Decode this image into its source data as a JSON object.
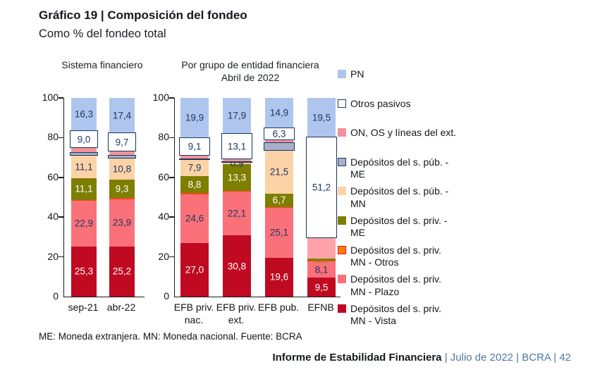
{
  "header": {
    "title": "Gráfico 19 | Composición del fondeo",
    "subtitle": "Como % del fondeo total"
  },
  "footnote": "ME: Moneda extranjera. MN: Moneda nacional. Fuente: BCRA",
  "footer": {
    "report_title": "Informe de Estabilidad Financiera",
    "meta": "| Julio de 2022 | BCRA | 42"
  },
  "colors": {
    "accent_navy": "#1F3864",
    "axis_black": "#1a1a1a",
    "footer_blue": "#4F78A2"
  },
  "chart_data": {
    "type": "bar",
    "stacked": true,
    "title": "Gráfico 19 | Composición del fondeo",
    "subtitle": "Como % del fondeo total",
    "ylabel": "% del fondeo total",
    "ylim": [
      0,
      100
    ],
    "yticks": [
      0,
      20,
      40,
      60,
      80,
      100
    ],
    "grid": false,
    "legend_position": "right",
    "series_defs": [
      {
        "id": "vista",
        "label": "Depósitos del s. priv. MN - Vista",
        "legend_lines": [
          "Depósitos del s. priv.",
          "MN - Vista"
        ],
        "color": "#C00A21",
        "label_color": "#ffffff"
      },
      {
        "id": "plazo",
        "label": "Depósitos del s. priv. MN - Plazo",
        "legend_lines": [
          "Depósitos del s. priv.",
          "MN - Plazo"
        ],
        "color": "#FA7179",
        "label_color": "#1F3864"
      },
      {
        "id": "otros_mn",
        "label": "Depósitos del s. priv. MN - Otros",
        "legend_lines": [
          "Depósitos del s. priv.",
          "MN - Otros"
        ],
        "color": "#FF7F00",
        "bar_color": "#FB451D",
        "swatch_border": "#E8112D",
        "label_color": "#1F3864"
      },
      {
        "id": "me_priv",
        "label": "Depósitos del s. priv. - ME",
        "legend_lines": [
          "Depósitos del s. priv. -",
          "ME"
        ],
        "color": "#7E7F00",
        "label_color": "#ffffff"
      },
      {
        "id": "mn_pub",
        "label": "Depósitos del s. púb. - MN",
        "legend_lines": [
          "Depósitos del s. púb. -",
          "MN"
        ],
        "color": "#FBD3A6",
        "label_color": "#1F3864"
      },
      {
        "id": "me_pub",
        "label": "Depósitos del s. púb. - ME",
        "legend_lines": [
          "Depósitos del s. púb. -",
          "ME"
        ],
        "color": "#A8AFC7",
        "boxed": true,
        "swatch_border": "#1F3864",
        "label_color": "#1F3864"
      },
      {
        "id": "on_os",
        "label": "ON, OS y líneas del ext.",
        "legend_lines": [
          "ON, OS y líneas del ext."
        ],
        "color": "#F4929B",
        "label_color": "#1F3864"
      },
      {
        "id": "otros_pasivos",
        "label": "Otros pasivos",
        "legend_lines": [
          "Otros pasivos"
        ],
        "color": "#FFFFFF",
        "boxed": true,
        "swatch_border": "#1F3864",
        "label_color": "#1F3864"
      },
      {
        "id": "pn",
        "label": "PN",
        "legend_lines": [
          "PN"
        ],
        "color": "#AEC5EE",
        "label_color": "#1F3864"
      }
    ],
    "panels": [
      {
        "title_line1": "Sistema financiero",
        "title_line2": "",
        "categories": [
          [
            "sep-21"
          ],
          [
            "abr-22"
          ]
        ],
        "bars": [
          [
            {
              "series": "vista",
              "value": 25.3,
              "label": "25,3"
            },
            {
              "series": "plazo",
              "value": 22.9,
              "label": "22,9"
            },
            {
              "series": "otros_mn",
              "value": 0.4
            },
            {
              "series": "me_priv",
              "value": 11.1,
              "label": "11,1"
            },
            {
              "series": "mn_pub",
              "value": 11.1,
              "label": "11,1"
            },
            {
              "series": "me_pub",
              "value": 1.9
            },
            {
              "series": "on_os",
              "value": 2.0
            },
            {
              "series": "otros_pasivos",
              "value": 9.0,
              "label": "9,0"
            },
            {
              "series": "pn",
              "value": 16.3,
              "label": "16,3"
            }
          ],
          [
            {
              "series": "vista",
              "value": 25.2,
              "label": "25,2"
            },
            {
              "series": "plazo",
              "value": 23.9,
              "label": "23,9"
            },
            {
              "series": "otros_mn",
              "value": 0.4
            },
            {
              "series": "me_priv",
              "value": 9.3,
              "label": "9,3"
            },
            {
              "series": "mn_pub",
              "value": 10.8,
              "label": "10,8"
            },
            {
              "series": "me_pub",
              "value": 1.6
            },
            {
              "series": "on_os",
              "value": 1.7
            },
            {
              "series": "otros_pasivos",
              "value": 9.7,
              "label": "9,7"
            },
            {
              "series": "pn",
              "value": 17.4,
              "label": "17,4"
            }
          ]
        ]
      },
      {
        "title_line1": "Por grupo de entidad financiera",
        "title_line2": "Abril de 2022",
        "categories": [
          [
            "EFB priv.",
            "nac."
          ],
          [
            "EFB priv.",
            "ext."
          ],
          [
            "EFB pub."
          ],
          [
            "EFNB"
          ]
        ],
        "bars": [
          [
            {
              "series": "vista",
              "value": 27.0,
              "label": "27,0"
            },
            {
              "series": "plazo",
              "value": 24.6,
              "label": "24,6"
            },
            {
              "series": "otros_mn",
              "value": 0.4
            },
            {
              "series": "me_priv",
              "value": 8.8,
              "label": "8,8"
            },
            {
              "series": "mn_pub",
              "value": 7.9,
              "label": "7,9"
            },
            {
              "series": "me_pub",
              "value": 0.5
            },
            {
              "series": "on_os",
              "value": 1.8
            },
            {
              "series": "otros_pasivos",
              "value": 9.1,
              "label": "9,1"
            },
            {
              "series": "pn",
              "value": 19.9,
              "label": "19,9"
            }
          ],
          [
            {
              "series": "vista",
              "value": 30.8,
              "label": "30,8"
            },
            {
              "series": "plazo",
              "value": 22.1,
              "label": "22,1"
            },
            {
              "series": "otros_mn",
              "value": 0.4
            },
            {
              "series": "me_priv",
              "value": 13.3,
              "label": "13,3"
            },
            {
              "series": "mn_pub",
              "value": 0.9,
              "label": "0,9"
            },
            {
              "series": "me_pub",
              "value": 0.3
            },
            {
              "series": "on_os",
              "value": 1.2
            },
            {
              "series": "otros_pasivos",
              "value": 13.1,
              "label": "13,1"
            },
            {
              "series": "pn",
              "value": 17.9,
              "label": "17,9"
            }
          ],
          [
            {
              "series": "vista",
              "value": 19.6,
              "label": "19,6"
            },
            {
              "series": "plazo",
              "value": 25.1,
              "label": "25,1"
            },
            {
              "series": "otros_mn",
              "value": 0.5
            },
            {
              "series": "me_priv",
              "value": 6.7,
              "label": "6,7"
            },
            {
              "series": "mn_pub",
              "value": 21.5,
              "label": "21,5"
            },
            {
              "series": "me_pub",
              "value": 4.4
            },
            {
              "series": "on_os",
              "value": 1.0
            },
            {
              "series": "otros_pasivos",
              "value": 6.3,
              "label": "6,3"
            },
            {
              "series": "pn",
              "value": 14.9,
              "label": "14,9"
            }
          ],
          [
            {
              "series": "vista",
              "value": 9.5,
              "label": "9,5"
            },
            {
              "series": "plazo",
              "value": 8.1,
              "label": "8,1"
            },
            {
              "series": "otros_mn",
              "value": 0.6
            },
            {
              "series": "me_priv",
              "value": 1.1,
              "label": "1,1",
              "label_color": "#9C8412"
            },
            {
              "series": "on_os",
              "value": 10.0,
              "bar_color": "#FFA2AA"
            },
            {
              "series": "otros_pasivos",
              "value": 51.2,
              "label": "51,2"
            },
            {
              "series": "pn",
              "value": 19.5,
              "label": "19,5"
            }
          ]
        ]
      }
    ]
  }
}
